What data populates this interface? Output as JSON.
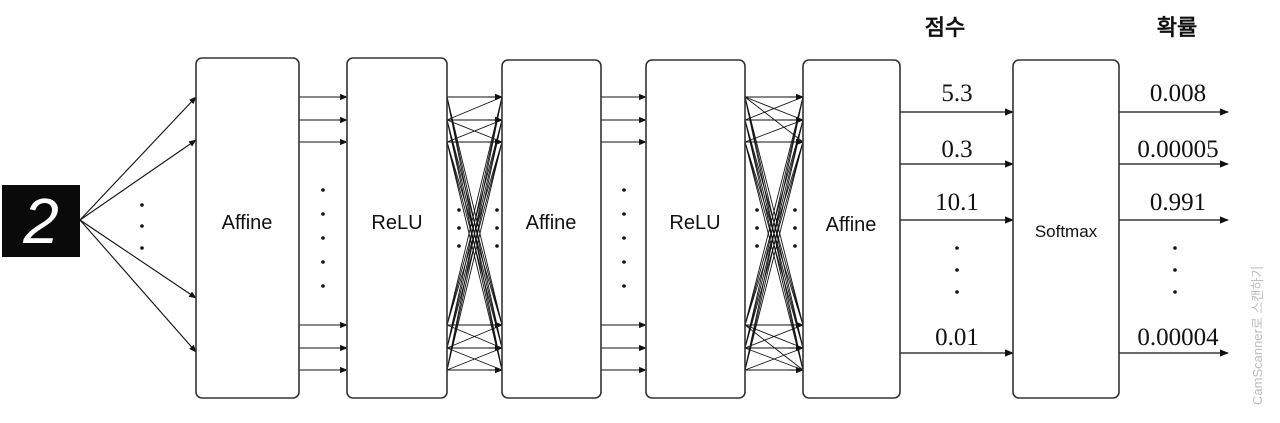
{
  "headers": {
    "scores": "점수",
    "probabilities": "확률"
  },
  "input": {
    "digit": "2"
  },
  "layers": [
    {
      "id": "affine1",
      "label": "Affine"
    },
    {
      "id": "relu1",
      "label": "ReLU"
    },
    {
      "id": "affine2",
      "label": "Affine"
    },
    {
      "id": "relu2",
      "label": "ReLU"
    },
    {
      "id": "affine3",
      "label": "Affine"
    },
    {
      "id": "softmax",
      "label": "Softmax"
    }
  ],
  "scores": [
    "5.3",
    "0.3",
    "10.1",
    "0.01"
  ],
  "probabilities": [
    "0.008",
    "0.00005",
    "0.991",
    "0.00004"
  ],
  "watermark": "CamScanner로 스캔하기",
  "colors": {
    "ink": "#111111",
    "box_border": "#333333",
    "input_bg": "#0a0a0a",
    "input_fg": "#ffffff",
    "watermark": "#bdbdbd"
  }
}
